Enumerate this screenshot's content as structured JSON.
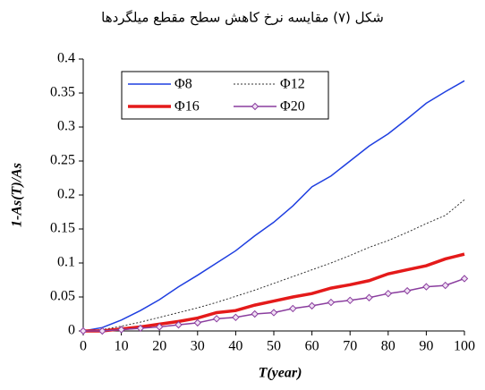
{
  "chart_data": {
    "type": "line",
    "title": "شکل (۷) مقایسه نرخ کاهش سطح مقطع میلگردها",
    "x_label": "T(year)",
    "y_label": "1-As(T)/As",
    "x": [
      0,
      5,
      10,
      15,
      20,
      25,
      30,
      35,
      40,
      45,
      50,
      55,
      60,
      65,
      70,
      75,
      80,
      85,
      90,
      95,
      100
    ],
    "series": [
      {
        "name": "Φ8",
        "color": "#1f3fe0",
        "line_style": "solid",
        "values": [
          0,
          0.005,
          0.016,
          0.03,
          0.046,
          0.065,
          0.082,
          0.1,
          0.118,
          0.14,
          0.16,
          0.184,
          0.212,
          0.228,
          0.25,
          0.272,
          0.29,
          0.312,
          0.335,
          0.352,
          0.368
        ]
      },
      {
        "name": "Φ12",
        "color": "#333333",
        "line_style": "dotted",
        "values": [
          0,
          0.002,
          0.007,
          0.013,
          0.02,
          0.027,
          0.034,
          0.042,
          0.051,
          0.06,
          0.07,
          0.08,
          0.09,
          0.1,
          0.111,
          0.123,
          0.133,
          0.145,
          0.158,
          0.17,
          0.193
        ]
      },
      {
        "name": "Φ16",
        "color": "#e41a1a",
        "line_style": "bold",
        "values": [
          0,
          0,
          0.003,
          0.006,
          0.01,
          0.014,
          0.019,
          0.027,
          0.03,
          0.038,
          0.044,
          0.05,
          0.055,
          0.063,
          0.068,
          0.074,
          0.084,
          0.09,
          0.096,
          0.106,
          0.113
        ]
      },
      {
        "name": "Φ20",
        "color": "#8a3d9e",
        "line_style": "marker",
        "values": [
          0,
          0,
          0.002,
          0.004,
          0.006,
          0.009,
          0.012,
          0.018,
          0.02,
          0.025,
          0.027,
          0.033,
          0.037,
          0.042,
          0.045,
          0.049,
          0.055,
          0.059,
          0.065,
          0.067,
          0.077
        ]
      }
    ],
    "xlim": [
      0,
      100
    ],
    "xticks": [
      0,
      10,
      20,
      30,
      40,
      50,
      60,
      70,
      80,
      90,
      100
    ],
    "ylim": [
      0,
      0.4
    ],
    "yticks": [
      0,
      0.05,
      0.1,
      0.15,
      0.2,
      0.25,
      0.3,
      0.35,
      0.4
    ],
    "grid": false,
    "legend_position": "upper left"
  }
}
